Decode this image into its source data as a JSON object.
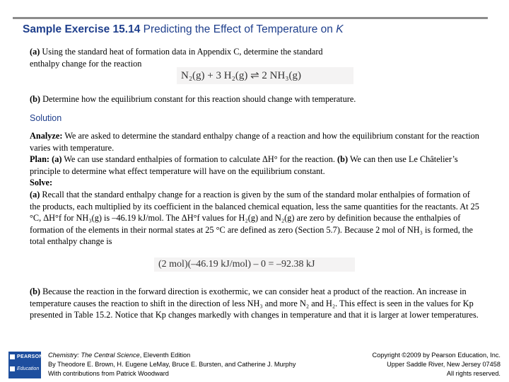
{
  "header": {
    "label": "Sample Exercise 15.14",
    "title_text": "Predicting the Effect of Temperature on ",
    "title_var": "K"
  },
  "problem": {
    "a_tag": "(a)",
    "a_line1": "Using the standard heat of formation data in Appendix C, determine the standard",
    "a_line2": "enthalpy change for the reaction",
    "reaction": "N₂(g) + 3 H₂(g) ⇌ 2 NH₃(g)",
    "b_tag": "(b)",
    "b_text": "Determine how the equilibrium constant for this reaction should change with temperature."
  },
  "solution": {
    "heading": "Solution",
    "analyze_label": "Analyze:",
    "analyze_text": "We are asked to determine the standard enthalpy change of a reaction and how the equilibrium constant for the reaction varies with temperature.",
    "plan_label": "Plan:",
    "plan_a": "(a)",
    "plan_a_text": "We can use standard enthalpies of formation to calculate ΔH° for the reaction.",
    "plan_b": "(b)",
    "plan_b_text": "We can then use Le Châtelier’s principle to determine what effect temperature will have on the equilibrium constant.",
    "solve_label": "Solve:",
    "solve_a": "(a)",
    "solve_a_text": "Recall that the standard enthalpy change for a reaction is given by the sum of the standard molar enthalpies of formation of the products, each multiplied by its coefficient in the balanced chemical equation, less the same quantities for the reactants. At 25 °C, ΔH°f for NH₃(g) is –46.19 kJ/mol. The ΔH°f values for H₂(g) and N₂(g) are zero by definition because the enthalpies of formation of the elements in their normal states at 25 °C are defined as zero (Section 5.7). Because 2 mol of NH₃ is formed, the total enthalpy change is",
    "calc": "(2 mol)(–46.19 kJ/mol) – 0 = –92.38 kJ",
    "solve_b": "(b)",
    "solve_b_text": "Because the reaction in the forward direction is exothermic, we can consider heat a product of the reaction. An increase in temperature causes the reaction to shift in the direction of less NH₃ and more N₂ and H₂. This effect is seen in the values for Kp presented in Table 15.2. Notice that Kp changes markedly with changes in temperature and that it is larger at lower temperatures."
  },
  "footer": {
    "logo_top": "PEARSON",
    "logo_bottom": "Education",
    "book_title": "Chemistry: The Central Science",
    "book_edition": ", Eleventh Edition",
    "authors": "By Theodore E. Brown, H. Eugene LeMay, Bruce E. Bursten, and Catherine J. Murphy",
    "contrib": "With contributions from Patrick Woodward",
    "copyright": "Copyright ©2009 by Pearson Education, Inc.",
    "address": "Upper Saddle River, New Jersey 07458",
    "rights": "All rights reserved."
  },
  "colors": {
    "title": "#1f3f8c",
    "rule": "#8c8c8c",
    "logo": "#1d4e9e"
  }
}
